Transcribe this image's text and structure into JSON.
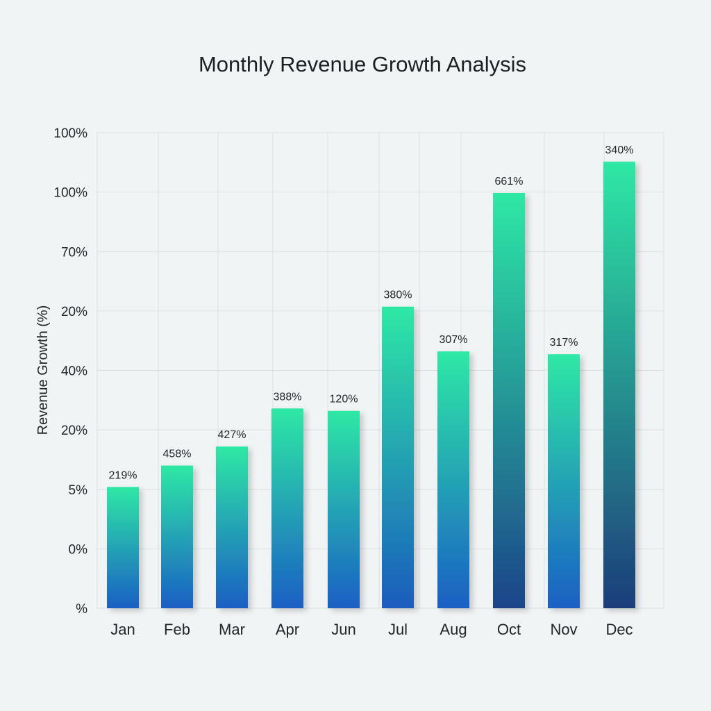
{
  "chart_data": {
    "type": "bar",
    "title": "Monthly Revenue Growth Analysis",
    "xlabel": "",
    "ylabel": "Revenue Growth (%)",
    "y_tick_labels": [
      "%",
      "0%",
      "5%",
      "20%",
      "40%",
      "20%",
      "70%",
      "100%",
      "100%"
    ],
    "categories": [
      "Jan",
      "Feb",
      "Mar",
      "Apr",
      "Jun",
      "Jul",
      "Aug",
      "Oct",
      "Nov",
      "Dec"
    ],
    "data_labels": [
      "219%",
      "458%",
      "427%",
      "388%",
      "120%",
      "380%",
      "307%",
      "661%",
      "317%",
      "340%"
    ],
    "bar_height_fraction_of_axis": [
      0.255,
      0.3,
      0.34,
      0.42,
      0.415,
      0.634,
      0.54,
      0.873,
      0.534,
      0.939
    ],
    "grid": true,
    "legend": "none",
    "colors": {
      "bar_top": "#2ee8a5",
      "bar_bottom": "#1a5fc4",
      "bar_bottom_dark": "#1d3c78"
    }
  }
}
